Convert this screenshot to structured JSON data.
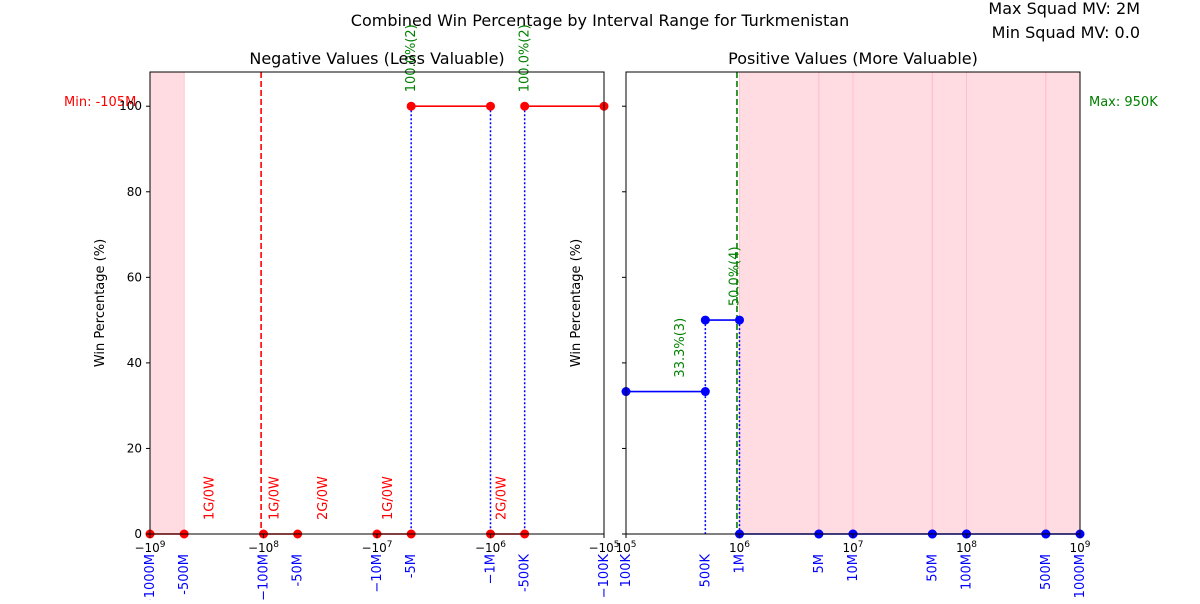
{
  "figure": {
    "title": "Combined Win Percentage by Interval Range for Turkmenistan",
    "max_note": "Max Squad MV: 2M",
    "min_note": "Min Squad MV: 0.0"
  },
  "colors": {
    "negative_line": "#ff0000",
    "positive_line": "#0000ff",
    "stem": "#0000ff",
    "label_green": "#008000",
    "label_red": "#ff0000",
    "shade": "#ffc0cb",
    "tick_blue": "#0000ff"
  },
  "chart_data": [
    {
      "type": "line",
      "title": "Negative Values (Less Valuable)",
      "ylabel": "Win Percentage (%)",
      "xscale": "symlog",
      "xlim": [
        -1000000000,
        -100000
      ],
      "ylim": [
        0,
        108
      ],
      "y_ticks": [
        0,
        20,
        40,
        60,
        80,
        100
      ],
      "x_ticks": [
        {
          "value": -1000000000,
          "label": "−1000M"
        },
        {
          "value": -500000000,
          "label": "-500M"
        },
        {
          "value": -100000000,
          "label": "−100M"
        },
        {
          "value": -50000000,
          "label": "-50M"
        },
        {
          "value": -10000000,
          "label": "−10M"
        },
        {
          "value": -5000000,
          "label": "-5M"
        },
        {
          "value": -1000000,
          "label": "−1M"
        },
        {
          "value": -500000,
          "label": "-500K"
        },
        {
          "value": -100000,
          "label": "−100K"
        }
      ],
      "power_ticks": [
        {
          "value": -1000000000,
          "base": "−10",
          "exp": "9"
        },
        {
          "value": -100000000,
          "base": "−10",
          "exp": "8"
        },
        {
          "value": -10000000,
          "base": "−10",
          "exp": "7"
        },
        {
          "value": -1000000,
          "base": "−10",
          "exp": "6"
        },
        {
          "value": -100000,
          "base": "−10",
          "exp": "5"
        }
      ],
      "series": [
        {
          "segment": [
            [
              -1000000000,
              0
            ],
            [
              -500000000,
              0
            ]
          ]
        },
        {
          "segment": [
            [
              -100000000,
              0
            ],
            [
              -50000000,
              0
            ]
          ]
        },
        {
          "segment": [
            [
              -10000000,
              0
            ],
            [
              -5000000,
              0
            ]
          ]
        },
        {
          "segment": [
            [
              -1000000,
              0
            ],
            [
              -500000,
              0
            ]
          ]
        },
        {
          "segment": [
            [
              -5000000,
              100
            ],
            [
              -1000000,
              100
            ]
          ]
        },
        {
          "segment": [
            [
              -500000,
              100
            ],
            [
              -100000,
              100
            ]
          ]
        }
      ],
      "stems": [
        -5000000,
        -1000000,
        -500000
      ],
      "shade_ranges": [
        [
          -1000000000,
          -500000000
        ]
      ],
      "ref_line": {
        "value": -105000000,
        "label": "Min: -105M"
      },
      "annotations": [
        {
          "x": -5000000,
          "y": 100,
          "text": "100.0%(2)",
          "color": "green"
        },
        {
          "x": -500000,
          "y": 100,
          "text": "100.0%(2)",
          "color": "green"
        },
        {
          "x": -300000000,
          "y": 0,
          "text": "1G/0W",
          "color": "red"
        },
        {
          "x": -80000000,
          "y": 0,
          "text": "1G/0W",
          "color": "red"
        },
        {
          "x": -30000000,
          "y": 0,
          "text": "2G/0W",
          "color": "red"
        },
        {
          "x": -8000000,
          "y": 0,
          "text": "1G/0W",
          "color": "red"
        },
        {
          "x": -800000,
          "y": 0,
          "text": "2G/0W",
          "color": "red"
        }
      ]
    },
    {
      "type": "line",
      "title": "Positive Values (More Valuable)",
      "ylabel": "Win Percentage (%)",
      "xscale": "log",
      "xlim": [
        100000,
        1000000000
      ],
      "ylim": [
        0,
        108
      ],
      "x_ticks": [
        {
          "value": 100000,
          "label": "100K"
        },
        {
          "value": 500000,
          "label": "500K"
        },
        {
          "value": 1000000,
          "label": "1M"
        },
        {
          "value": 5000000,
          "label": "5M"
        },
        {
          "value": 10000000,
          "label": "10M"
        },
        {
          "value": 50000000,
          "label": "50M"
        },
        {
          "value": 100000000,
          "label": "100M"
        },
        {
          "value": 500000000,
          "label": "500M"
        },
        {
          "value": 1000000000,
          "label": "1000M"
        }
      ],
      "power_ticks": [
        {
          "value": 100000,
          "base": "10",
          "exp": "5"
        },
        {
          "value": 1000000,
          "base": "10",
          "exp": "6"
        },
        {
          "value": 10000000,
          "base": "10",
          "exp": "7"
        },
        {
          "value": 100000000,
          "base": "10",
          "exp": "8"
        },
        {
          "value": 1000000000,
          "base": "10",
          "exp": "9"
        }
      ],
      "series": [
        {
          "segment": [
            [
              100000,
              33.3
            ],
            [
              500000,
              33.3
            ]
          ]
        },
        {
          "segment": [
            [
              500000,
              50
            ],
            [
              1000000,
              50
            ]
          ]
        },
        {
          "segment": [
            [
              1000000,
              0
            ],
            [
              5000000,
              0
            ]
          ]
        },
        {
          "segment": [
            [
              5000000,
              0
            ],
            [
              10000000,
              0
            ]
          ]
        },
        {
          "segment": [
            [
              10000000,
              0
            ],
            [
              50000000,
              0
            ]
          ]
        },
        {
          "segment": [
            [
              50000000,
              0
            ],
            [
              100000000,
              0
            ]
          ]
        },
        {
          "segment": [
            [
              100000000,
              0
            ],
            [
              500000000,
              0
            ]
          ]
        },
        {
          "segment": [
            [
              500000000,
              0
            ],
            [
              1000000000,
              0
            ]
          ]
        }
      ],
      "stems": [
        500000,
        1000000
      ],
      "shade_ranges": [
        [
          1000000,
          5000000
        ],
        [
          5000000,
          10000000
        ],
        [
          10000000,
          50000000
        ],
        [
          50000000,
          100000000
        ],
        [
          100000000,
          500000000
        ],
        [
          500000000,
          1000000000
        ]
      ],
      "ref_line": {
        "value": 950000,
        "label": "Max: 950K"
      },
      "annotations": [
        {
          "x": 300000,
          "y": 33.3,
          "text": "33.3%(3)",
          "color": "green"
        },
        {
          "x": 900000,
          "y": 50,
          "text": "50.0%(4)",
          "color": "green"
        }
      ]
    }
  ]
}
